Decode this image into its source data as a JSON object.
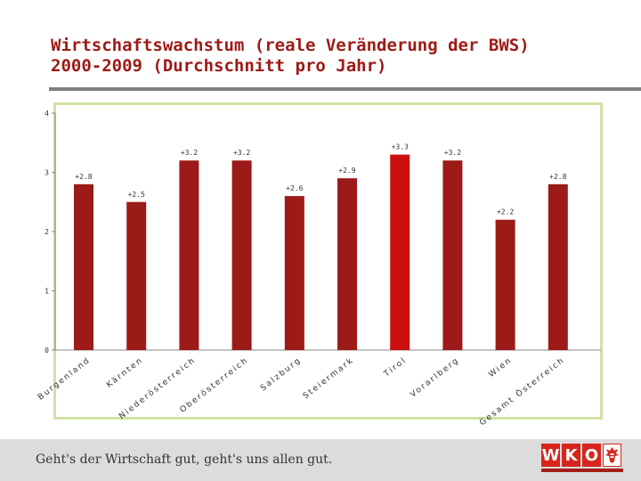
{
  "header": {
    "title_line1": "Wirtschaftswachstum (reale Veränderung der BWS)",
    "title_line2": "2000-2009 (Durchschnitt pro Jahr)"
  },
  "footer": {
    "slogan": "Geht's der Wirtschaft gut, geht's uns allen gut.",
    "logo_letters": [
      "W",
      "K",
      "O"
    ],
    "logo_emblem": "eagle-icon"
  },
  "colors": {
    "bar": "#9c1a17",
    "bar_highlight": "#cc1010",
    "frame": "#cfe2a4",
    "title": "#9c1a17"
  },
  "chart_data": {
    "type": "bar",
    "title": "",
    "xlabel": "",
    "ylabel": "",
    "ylim": [
      0,
      4
    ],
    "yticks": [
      0,
      1,
      2,
      3,
      4
    ],
    "categories": [
      "Burgenland",
      "Kärnten",
      "Niederösterreich",
      "Oberösterreich",
      "Salzburg",
      "Steiermark",
      "Tirol",
      "Vorarlberg",
      "Wien",
      "Gesamt Österreich"
    ],
    "values": [
      2.8,
      2.5,
      3.2,
      3.2,
      2.6,
      2.9,
      3.3,
      3.2,
      2.2,
      2.8
    ],
    "labels": [
      "+2.8",
      "+2.5",
      "+3.2",
      "+3.2",
      "+2.6",
      "+2.9",
      "+3.3",
      "+3.2",
      "+2.2",
      "+2.8"
    ],
    "highlight": "Tirol"
  }
}
